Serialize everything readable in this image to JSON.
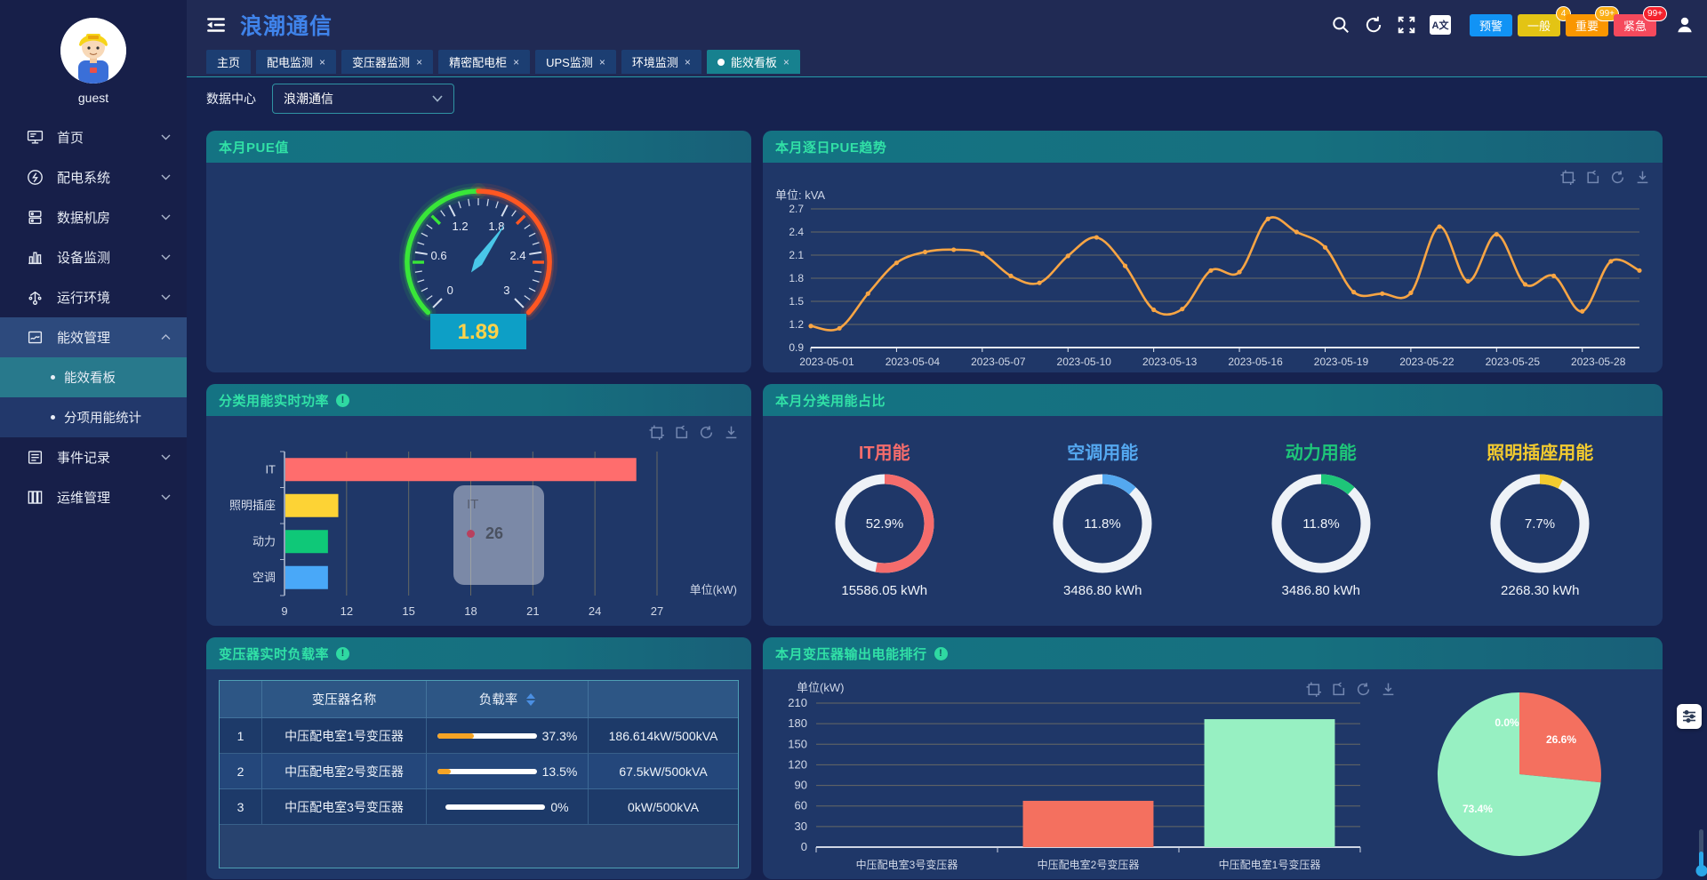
{
  "app": {
    "title": "浪潮通信"
  },
  "topbar": {
    "alarms": [
      {
        "label": "预警",
        "badge": "",
        "color": "#1193f5",
        "badge_color": ""
      },
      {
        "label": "一般",
        "badge": "4",
        "color": "#e3c414",
        "badge_color": "#faad14"
      },
      {
        "label": "重要",
        "badge": "99+",
        "color": "#fa9600",
        "badge_color": "#faad14"
      },
      {
        "label": "紧急",
        "badge": "99+",
        "color": "#f5495c",
        "badge_color": "#f5222d"
      }
    ]
  },
  "tabs": [
    {
      "label": "主页",
      "closable": false,
      "active": false
    },
    {
      "label": "配电监测",
      "closable": true,
      "active": false
    },
    {
      "label": "变压器监测",
      "closable": true,
      "active": false
    },
    {
      "label": "精密配电柜",
      "closable": true,
      "active": false
    },
    {
      "label": "UPS监测",
      "closable": true,
      "active": false
    },
    {
      "label": "环境监测",
      "closable": true,
      "active": false
    },
    {
      "label": "能效看板",
      "closable": true,
      "active": true
    }
  ],
  "sidebar": {
    "username": "guest",
    "items": [
      {
        "label": "首页",
        "icon": "home",
        "expanded": false
      },
      {
        "label": "配电系统",
        "icon": "power",
        "expanded": false
      },
      {
        "label": "数据机房",
        "icon": "server",
        "expanded": false
      },
      {
        "label": "设备监测",
        "icon": "device",
        "expanded": false
      },
      {
        "label": "运行环境",
        "icon": "env",
        "expanded": false
      },
      {
        "label": "能效管理",
        "icon": "energy",
        "expanded": true,
        "active": true,
        "children": [
          {
            "label": "能效看板",
            "active": true
          },
          {
            "label": "分项用能统计",
            "active": false
          }
        ]
      },
      {
        "label": "事件记录",
        "icon": "events",
        "expanded": false
      },
      {
        "label": "运维管理",
        "icon": "ops",
        "expanded": false
      }
    ]
  },
  "datacenter_filter": {
    "label": "数据中心",
    "value": "浪潮通信"
  },
  "cards": {
    "pue_gauge": {
      "title": "本月PUE值",
      "value": "1.89"
    },
    "pue_trend": {
      "title": "本月逐日PUE趋势",
      "unit_label": "单位: kVA"
    },
    "realtime_power": {
      "title": "分类用能实时功率",
      "unit_label": "单位(kW)",
      "tooltip": {
        "series": "IT",
        "value": "26"
      }
    },
    "energy_share": {
      "title": "本月分类用能占比"
    },
    "transformer_load": {
      "title": "变压器实时负载率",
      "columns": [
        "",
        "变压器名称",
        "负载率",
        ""
      ],
      "rows": [
        {
          "index": "1",
          "name": "中压配电室1号变压器",
          "percent": "37.3%",
          "pct": 37.3,
          "capacity": "186.614kW/500kVA"
        },
        {
          "index": "2",
          "name": "中压配电室2号变压器",
          "percent": "13.5%",
          "pct": 13.5,
          "capacity": "67.5kW/500kVA"
        },
        {
          "index": "3",
          "name": "中压配电室3号变压器",
          "percent": "0%",
          "pct": 0,
          "capacity": "0kW/500kVA"
        }
      ]
    },
    "transformer_output": {
      "title": "本月变压器输出电能排行",
      "unit_label": "单位(kW)"
    }
  },
  "chart_data": [
    {
      "id": "pue_gauge",
      "type": "gauge",
      "title": "本月PUE值",
      "min": 0,
      "max": 3,
      "value": 1.89,
      "tick_labels": [
        "0",
        "0.6",
        "1.2",
        "1.8",
        "2.4",
        "3"
      ],
      "tick_values": [
        0,
        0.6,
        1.2,
        1.8,
        2.4,
        3
      ],
      "green_ticks": [
        0.5,
        1.0
      ],
      "orange_ticks": [
        2.0,
        2.5
      ],
      "arc_colors": {
        "low": "#39e639",
        "high": "#ff5722"
      },
      "value_box_color": "#0d9fc6",
      "value_text_color": "#ffd24a",
      "needle_color": "#49c7e8"
    },
    {
      "id": "pue_trend",
      "type": "line",
      "title": "本月逐日PUE趋势",
      "ylabel": "kVA",
      "x": [
        "2023-05-01",
        "2023-05-02",
        "2023-05-03",
        "2023-05-04",
        "2023-05-05",
        "2023-05-06",
        "2023-05-07",
        "2023-05-08",
        "2023-05-09",
        "2023-05-10",
        "2023-05-11",
        "2023-05-12",
        "2023-05-13",
        "2023-05-14",
        "2023-05-15",
        "2023-05-16",
        "2023-05-17",
        "2023-05-18",
        "2023-05-19",
        "2023-05-20",
        "2023-05-21",
        "2023-05-22",
        "2023-05-23",
        "2023-05-24",
        "2023-05-25",
        "2023-05-26",
        "2023-05-27",
        "2023-05-28",
        "2023-05-29",
        "2023-05-30"
      ],
      "values": [
        1.18,
        1.15,
        1.6,
        2.0,
        2.14,
        2.17,
        2.12,
        1.83,
        1.74,
        2.09,
        2.33,
        1.96,
        1.39,
        1.4,
        1.9,
        1.88,
        2.57,
        2.4,
        2.2,
        1.62,
        1.6,
        1.61,
        2.47,
        1.76,
        2.37,
        1.72,
        1.83,
        1.37,
        2.02,
        1.9
      ],
      "ylim": [
        0.9,
        2.7
      ],
      "ytick_step": 0.3,
      "xtick_every": 3,
      "line_color": "#f8a544",
      "grid": true
    },
    {
      "id": "realtime_power",
      "type": "bar",
      "orientation": "horizontal",
      "categories": [
        "IT",
        "照明插座",
        "动力",
        "空调"
      ],
      "values": [
        26,
        11.6,
        11.1,
        11.1
      ],
      "colors": [
        "#ff6d6d",
        "#fdd335",
        "#0fc878",
        "#49a8f8"
      ],
      "xlim": [
        9,
        27
      ],
      "xticks": [
        9,
        12,
        15,
        18,
        21,
        24,
        27
      ],
      "xlabel": "单位(kW)"
    },
    {
      "id": "energy_share",
      "type": "donut",
      "items": [
        {
          "name": "IT用能",
          "percent": "52.9%",
          "pct": 52.9,
          "value": "15586.05 kWh",
          "color": "#f56c6c"
        },
        {
          "name": "空调用能",
          "percent": "11.8%",
          "pct": 11.8,
          "value": "3486.80 kWh",
          "color": "#54a8f0"
        },
        {
          "name": "动力用能",
          "percent": "11.8%",
          "pct": 11.8,
          "value": "3486.80 kWh",
          "color": "#1ec679"
        },
        {
          "name": "照明插座用能",
          "percent": "7.7%",
          "pct": 7.7,
          "value": "2268.30 kWh",
          "color": "#f3cb2f"
        }
      ]
    },
    {
      "id": "transformer_output_bar",
      "type": "bar",
      "orientation": "vertical",
      "categories": [
        "中压配电室3号变压器",
        "中压配电室2号变压器",
        "中压配电室1号变压器"
      ],
      "values": [
        0,
        67.5,
        186.6
      ],
      "colors": [
        "#f4705f",
        "#f4705f",
        "#97f0c2"
      ],
      "ylim": [
        0,
        210
      ],
      "ytick_step": 30,
      "ylabel": "单位(kW)"
    },
    {
      "id": "transformer_output_pie",
      "type": "pie",
      "slices": [
        {
          "label": "0.0%",
          "value": 0,
          "color": "#f4705f"
        },
        {
          "label": "26.6%",
          "value": 26.6,
          "color": "#f4705f"
        },
        {
          "label": "73.4%",
          "value": 73.4,
          "color": "#97f0c2"
        }
      ]
    }
  ]
}
